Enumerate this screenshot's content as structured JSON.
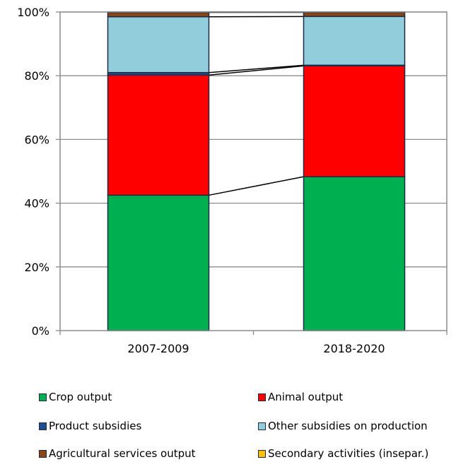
{
  "chart_data": {
    "type": "bar",
    "stacked": true,
    "percent": true,
    "categories": [
      "2007-2009",
      "2018-2020"
    ],
    "series": [
      {
        "name": "Crop output",
        "color": "#00b050",
        "values": [
          42.5,
          48.3
        ]
      },
      {
        "name": "Animal output",
        "color": "#ff0000",
        "values": [
          37.7,
          34.8
        ]
      },
      {
        "name": "Product subsidies",
        "color": "#1f4e8c",
        "values": [
          0.8,
          0.2
        ]
      },
      {
        "name": "Other subsidies on production",
        "color": "#92cddc",
        "values": [
          17.5,
          15.3
        ]
      },
      {
        "name": "Agricultural services output",
        "color": "#8b4513",
        "values": [
          1.4,
          1.3
        ]
      },
      {
        "name": "Secondary activities (insepar.)",
        "color": "#ffc000",
        "values": [
          0.1,
          0.1
        ]
      }
    ],
    "ylim": [
      0,
      100
    ],
    "yticks": [
      "0%",
      "20%",
      "40%",
      "60%",
      "80%",
      "100%"
    ],
    "grid": true,
    "legend_position": "bottom"
  }
}
